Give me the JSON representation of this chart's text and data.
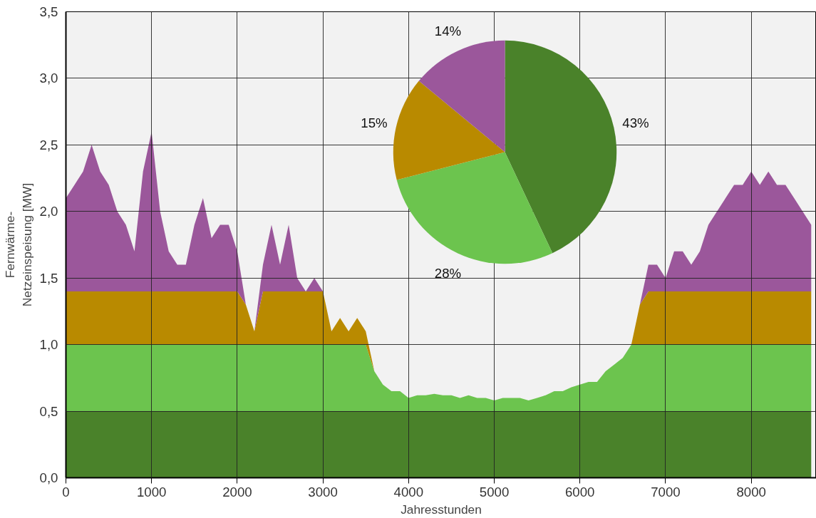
{
  "chart_data": [
    {
      "type": "area",
      "stacked": true,
      "xlabel": "Jahresstunden",
      "ylabel": "Fernwärme-\nNetzeinspeisung [MW]",
      "x": [
        0,
        100,
        200,
        300,
        400,
        500,
        600,
        700,
        800,
        900,
        1000,
        1100,
        1200,
        1300,
        1400,
        1500,
        1600,
        1700,
        1800,
        1900,
        2000,
        2100,
        2200,
        2300,
        2400,
        2500,
        2600,
        2700,
        2800,
        2900,
        3000,
        3100,
        3200,
        3300,
        3400,
        3500,
        3600,
        3700,
        3800,
        3900,
        4000,
        4100,
        4200,
        4300,
        4400,
        4500,
        4600,
        4700,
        4800,
        4900,
        5000,
        5100,
        5200,
        5300,
        5400,
        5500,
        5600,
        5700,
        5800,
        5900,
        6000,
        6100,
        6200,
        6300,
        6400,
        6500,
        6600,
        6700,
        6800,
        6900,
        7000,
        7100,
        7200,
        7300,
        7400,
        7500,
        7600,
        7700,
        7800,
        7900,
        8000,
        8100,
        8200,
        8300,
        8400,
        8500,
        8600,
        8700
      ],
      "xlim": [
        0,
        8760
      ],
      "xticks": [
        0,
        1000,
        2000,
        3000,
        4000,
        5000,
        6000,
        7000,
        8000
      ],
      "ylim": [
        0,
        3.5
      ],
      "yticks": [
        {
          "value": 0,
          "label": "0,0"
        },
        {
          "value": 0.5,
          "label": "0,5"
        },
        {
          "value": 1,
          "label": "1,0"
        },
        {
          "value": 1.5,
          "label": "1,5"
        },
        {
          "value": 2,
          "label": "2,0"
        },
        {
          "value": 2.5,
          "label": "2,5"
        },
        {
          "value": 3,
          "label": "3,0"
        },
        {
          "value": 3.5,
          "label": "3,5"
        }
      ],
      "grid": true,
      "series": [
        {
          "color": "#4a822a",
          "values": [
            0.5,
            0.5,
            0.5,
            0.5,
            0.5,
            0.5,
            0.5,
            0.5,
            0.5,
            0.5,
            0.5,
            0.5,
            0.5,
            0.5,
            0.5,
            0.5,
            0.5,
            0.5,
            0.5,
            0.5,
            0.5,
            0.5,
            0.5,
            0.5,
            0.5,
            0.5,
            0.5,
            0.5,
            0.5,
            0.5,
            0.5,
            0.5,
            0.5,
            0.5,
            0.5,
            0.5,
            0.5,
            0.5,
            0.5,
            0.5,
            0.5,
            0.5,
            0.5,
            0.5,
            0.5,
            0.5,
            0.5,
            0.5,
            0.5,
            0.5,
            0.5,
            0.5,
            0.5,
            0.5,
            0.5,
            0.5,
            0.5,
            0.5,
            0.5,
            0.5,
            0.5,
            0.5,
            0.5,
            0.5,
            0.5,
            0.5,
            0.5,
            0.5,
            0.5,
            0.5,
            0.5,
            0.5,
            0.5,
            0.5,
            0.5,
            0.5,
            0.5,
            0.5,
            0.5,
            0.5,
            0.5,
            0.5,
            0.5,
            0.5,
            0.5,
            0.5,
            0.5,
            0.5
          ]
        },
        {
          "color": "#6cc44e",
          "values": [
            0.5,
            0.5,
            0.5,
            0.5,
            0.5,
            0.5,
            0.5,
            0.5,
            0.5,
            0.5,
            0.5,
            0.5,
            0.5,
            0.5,
            0.5,
            0.5,
            0.5,
            0.5,
            0.5,
            0.5,
            0.5,
            0.5,
            0.5,
            0.5,
            0.5,
            0.5,
            0.5,
            0.5,
            0.5,
            0.5,
            0.5,
            0.5,
            0.5,
            0.5,
            0.5,
            0.5,
            0.3,
            0.2,
            0.15,
            0.15,
            0.1,
            0.12,
            0.12,
            0.13,
            0.12,
            0.12,
            0.1,
            0.12,
            0.1,
            0.1,
            0.08,
            0.1,
            0.1,
            0.1,
            0.08,
            0.1,
            0.12,
            0.15,
            0.15,
            0.18,
            0.2,
            0.22,
            0.22,
            0.3,
            0.35,
            0.4,
            0.5,
            0.5,
            0.5,
            0.5,
            0.5,
            0.5,
            0.5,
            0.5,
            0.5,
            0.5,
            0.5,
            0.5,
            0.5,
            0.5,
            0.5,
            0.5,
            0.5,
            0.5,
            0.5,
            0.5,
            0.5,
            0.5
          ]
        },
        {
          "color": "#b98a00",
          "values": [
            0.4,
            0.4,
            0.4,
            0.4,
            0.4,
            0.4,
            0.4,
            0.4,
            0.4,
            0.4,
            0.4,
            0.4,
            0.4,
            0.4,
            0.4,
            0.4,
            0.4,
            0.4,
            0.4,
            0.4,
            0.4,
            0.3,
            0.1,
            0.4,
            0.4,
            0.4,
            0.4,
            0.4,
            0.4,
            0.4,
            0.4,
            0.1,
            0.2,
            0.1,
            0.2,
            0.1,
            0,
            0,
            0,
            0,
            0,
            0,
            0,
            0,
            0,
            0,
            0,
            0,
            0,
            0,
            0,
            0,
            0,
            0,
            0,
            0,
            0,
            0,
            0,
            0,
            0,
            0,
            0,
            0,
            0,
            0,
            0,
            0.3,
            0.4,
            0.4,
            0.4,
            0.4,
            0.4,
            0.4,
            0.4,
            0.4,
            0.4,
            0.4,
            0.4,
            0.4,
            0.4,
            0.4,
            0.4,
            0.4,
            0.4,
            0.4,
            0.4,
            0.4
          ]
        },
        {
          "color": "#9b579b",
          "values": [
            0.7,
            0.8,
            0.9,
            1.1,
            0.9,
            0.8,
            0.6,
            0.5,
            0.3,
            0.9,
            1.2,
            0.6,
            0.3,
            0.2,
            0.2,
            0.5,
            0.7,
            0.4,
            0.5,
            0.5,
            0.3,
            0,
            0,
            0.2,
            0.5,
            0.2,
            0.5,
            0.1,
            0,
            0.1,
            0,
            0,
            0,
            0,
            0,
            0,
            0,
            0,
            0,
            0,
            0,
            0,
            0,
            0,
            0,
            0,
            0,
            0,
            0,
            0,
            0,
            0,
            0,
            0,
            0,
            0,
            0,
            0,
            0,
            0,
            0,
            0,
            0,
            0,
            0,
            0,
            0,
            0,
            0.2,
            0.2,
            0.1,
            0.3,
            0.3,
            0.2,
            0.3,
            0.5,
            0.6,
            0.7,
            0.8,
            0.8,
            0.9,
            0.8,
            0.9,
            0.8,
            0.8,
            0.7,
            0.6,
            0.5
          ]
        }
      ]
    },
    {
      "type": "pie",
      "categories": [
        null,
        null,
        null,
        null
      ],
      "values": [
        43,
        28,
        15,
        14
      ],
      "colors": [
        "#4a822a",
        "#6cc44e",
        "#b98a00",
        "#9b579b"
      ],
      "value_labels": [
        "43%",
        "28%",
        "15%",
        "14%"
      ]
    }
  ]
}
